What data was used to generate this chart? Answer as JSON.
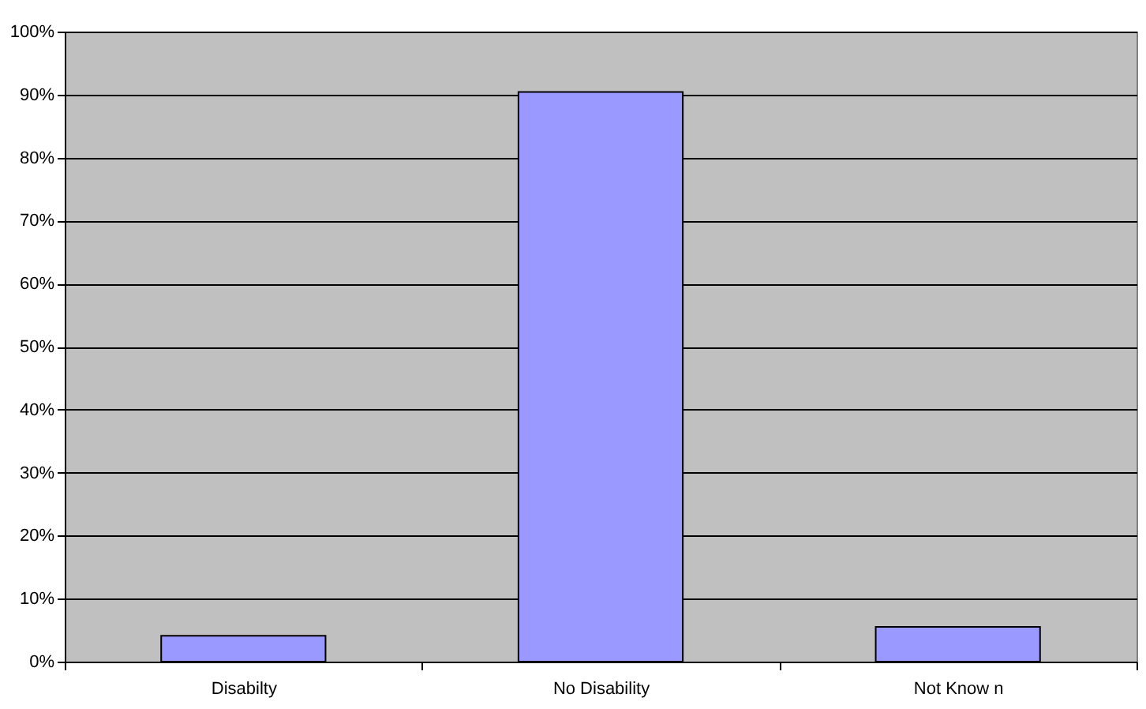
{
  "chart_data": {
    "type": "bar",
    "categories": [
      "Disabilty",
      "No Disability",
      "Not Know n"
    ],
    "values": [
      4.1,
      90.4,
      5.5
    ],
    "color": "#9999ff",
    "ylim": [
      0,
      100
    ],
    "yticks": [
      {
        "value": 0,
        "label": "0%"
      },
      {
        "value": 10,
        "label": "10%"
      },
      {
        "value": 20,
        "label": "20%"
      },
      {
        "value": 30,
        "label": "30%"
      },
      {
        "value": 40,
        "label": "40%"
      },
      {
        "value": 50,
        "label": "50%"
      },
      {
        "value": 60,
        "label": "60%"
      },
      {
        "value": 70,
        "label": "70%"
      },
      {
        "value": 80,
        "label": "80%"
      },
      {
        "value": 90,
        "label": "90%"
      },
      {
        "value": 100,
        "label": "100%"
      }
    ],
    "grid": "y"
  }
}
